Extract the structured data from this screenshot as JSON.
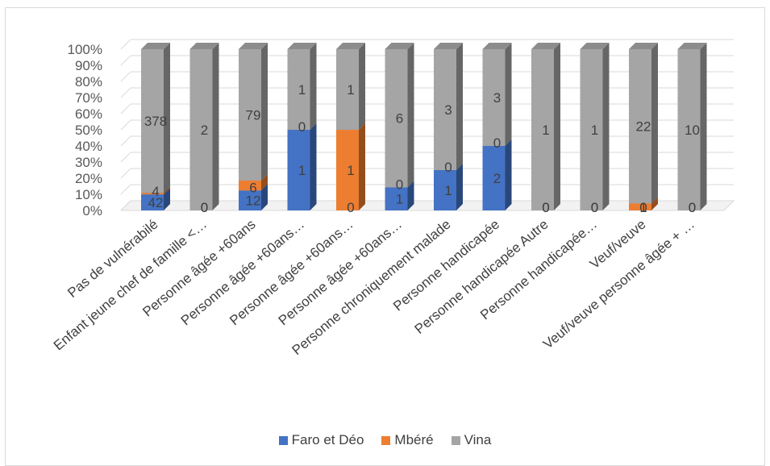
{
  "chart_data": {
    "type": "bar",
    "stacking": "percent",
    "style": "3d-stacked-column",
    "categories": [
      "Pas de vulnérabilé",
      "Enfant jeune chef de famille <…",
      "Personne âgée +60ans",
      "Personne âgée +60ans…",
      "Personne âgée +60ans…",
      "Personne âgée +60ans…",
      "Personne chroniquement malade",
      "Personne handicapée",
      "Personne handicapée Autre",
      "Personne handicapée…",
      "Veuf/veuve",
      "Veuf/veuve personne âgée + …"
    ],
    "series": [
      {
        "name": "Faro et Déo",
        "color": "#4472C4",
        "values": [
          42,
          0,
          12,
          1,
          0,
          1,
          1,
          2,
          0,
          0,
          0,
          0
        ]
      },
      {
        "name": "Mbéré",
        "color": "#ED7D31",
        "values": [
          4,
          0,
          6,
          0,
          1,
          0,
          0,
          0,
          0,
          0,
          1,
          0
        ]
      },
      {
        "name": "Vina",
        "color": "#A5A5A5",
        "values": [
          378,
          2,
          79,
          1,
          1,
          6,
          3,
          3,
          1,
          1,
          22,
          10
        ]
      }
    ],
    "yticks": [
      "0%",
      "10%",
      "20%",
      "30%",
      "40%",
      "50%",
      "60%",
      "70%",
      "80%",
      "90%",
      "100%"
    ],
    "ylim": [
      0,
      100
    ],
    "grid": true,
    "legend": "bottom"
  }
}
